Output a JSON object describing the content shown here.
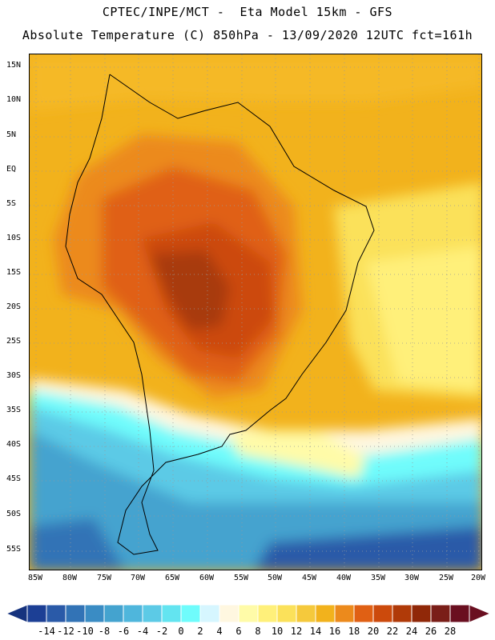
{
  "header": {
    "line1": "CPTEC/INPE/MCT -  Eta Model 15km - GFS",
    "line2": "Absolute Temperature (C) 850hPa - 13/09/2020 12UTC fct=161h"
  },
  "map": {
    "lat_labels": [
      "15N",
      "10N",
      "5N",
      "EQ",
      "5S",
      "10S",
      "15S",
      "20S",
      "25S",
      "30S",
      "35S",
      "40S",
      "45S",
      "50S",
      "55S"
    ],
    "lon_labels": [
      "85W",
      "80W",
      "75W",
      "70W",
      "65W",
      "60W",
      "55W",
      "50W",
      "45W",
      "40W",
      "35W",
      "30W",
      "25W",
      "20W"
    ],
    "region": "South America"
  },
  "legend": {
    "labels": [
      "-14",
      "-12",
      "-10",
      "-8",
      "-6",
      "-4",
      "-2",
      "0",
      "2",
      "4",
      "6",
      "8",
      "10",
      "12",
      "14",
      "16",
      "18",
      "20",
      "22",
      "24",
      "26",
      "28"
    ],
    "colors": [
      "#1c3f95",
      "#2a5aa8",
      "#3273b6",
      "#3a8cc4",
      "#44a3cf",
      "#4fb6dc",
      "#5ccae6",
      "#63e4f0",
      "#6ffcfc",
      "#d6f6ff",
      "#fff7e0",
      "#fffba8",
      "#fff07a",
      "#fbe15a",
      "#f5c93c",
      "#f2b21c",
      "#ec8a1c",
      "#e06014",
      "#cc4a0c",
      "#b03a08",
      "#902808",
      "#7a1e18",
      "#6a0f20"
    ]
  }
}
